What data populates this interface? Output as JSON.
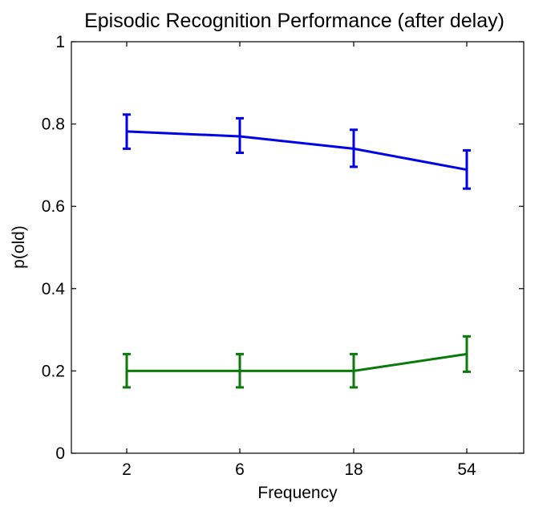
{
  "chart_data": {
    "type": "line",
    "title": "Episodic Recognition Performance (after delay)",
    "xlabel": "Frequency",
    "ylabel": "p(old)",
    "categories": [
      "2",
      "6",
      "18",
      "54"
    ],
    "ylim": [
      0,
      1
    ],
    "yticks": [
      "0",
      "0.2",
      "0.4",
      "0.6",
      "0.8",
      "1"
    ],
    "grid": false,
    "legend": "none",
    "series": [
      {
        "color": "#0000e6",
        "values": [
          0.782,
          0.77,
          0.74,
          0.689
        ],
        "error_low": [
          0.74,
          0.73,
          0.696,
          0.643
        ],
        "error_high": [
          0.823,
          0.814,
          0.786,
          0.736
        ]
      },
      {
        "color": "#0a7a0a",
        "values": [
          0.2,
          0.2,
          0.2,
          0.241
        ],
        "error_low": [
          0.16,
          0.16,
          0.16,
          0.198
        ],
        "error_high": [
          0.241,
          0.241,
          0.241,
          0.284
        ]
      }
    ]
  }
}
